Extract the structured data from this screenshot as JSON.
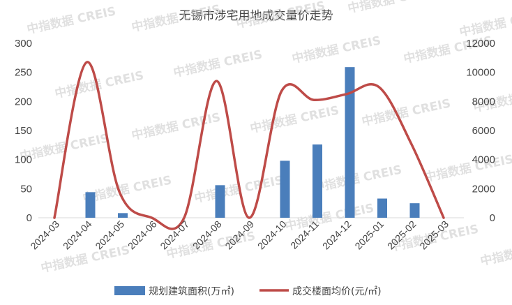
{
  "chart_data": {
    "type": "bar+line",
    "title": "无锡市涉宅用地成交量价走势",
    "categories": [
      "2024-03",
      "2024-04",
      "2024-05",
      "2024-06",
      "2024-07",
      "2024-08",
      "2024-09",
      "2024-10",
      "2024-11",
      "2024-12",
      "2025-01",
      "2025-02",
      "2025-03"
    ],
    "series": [
      {
        "name": "规划建筑面积(万㎡)",
        "type": "bar",
        "axis": "left",
        "values": [
          0,
          44,
          8,
          0,
          0,
          56,
          0,
          98,
          126,
          259,
          33,
          25,
          0
        ]
      },
      {
        "name": "成交楼面均价(元/㎡)",
        "type": "line",
        "axis": "right",
        "values": [
          0,
          10700,
          1800,
          0,
          0,
          9400,
          0,
          8700,
          8100,
          8500,
          9000,
          5100,
          0
        ]
      }
    ],
    "y_left": {
      "min": 0,
      "max": 300,
      "ticks": [
        0,
        50,
        100,
        150,
        200,
        250,
        300
      ]
    },
    "y_right": {
      "min": 0,
      "max": 12000,
      "ticks": [
        0,
        2000,
        4000,
        6000,
        8000,
        10000,
        12000
      ]
    },
    "legend_position": "bottom",
    "grid": false,
    "colors": {
      "bar": "#4a7ebb",
      "line": "#be4b48"
    },
    "watermark": "中指数据 CREIS"
  }
}
